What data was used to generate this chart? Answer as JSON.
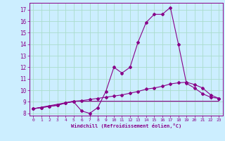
{
  "xlabel": "Windchill (Refroidissement éolien,°C)",
  "background_color": "#cceeff",
  "grid_color": "#aaddcc",
  "line_color": "#880088",
  "xlim": [
    -0.5,
    23.5
  ],
  "ylim": [
    7.8,
    17.6
  ],
  "yticks": [
    8,
    9,
    10,
    11,
    12,
    13,
    14,
    15,
    16,
    17
  ],
  "xticks": [
    0,
    1,
    2,
    3,
    4,
    5,
    6,
    7,
    8,
    9,
    10,
    11,
    12,
    13,
    14,
    15,
    16,
    17,
    18,
    19,
    20,
    21,
    22,
    23
  ],
  "series1_x": [
    0,
    1,
    2,
    3,
    4,
    5,
    6,
    7,
    8,
    9,
    10,
    11,
    12,
    13,
    14,
    15,
    16,
    17,
    18,
    19,
    20,
    21,
    22,
    23
  ],
  "series1_y": [
    8.4,
    8.5,
    8.6,
    8.7,
    8.9,
    9.0,
    8.2,
    8.0,
    8.5,
    9.9,
    12.0,
    11.5,
    12.0,
    14.2,
    15.9,
    16.6,
    16.6,
    17.2,
    14.0,
    10.6,
    10.2,
    9.7,
    9.4,
    9.3
  ],
  "series2_x": [
    0,
    1,
    2,
    3,
    4,
    5,
    6,
    7,
    8,
    9,
    10,
    11,
    12,
    13,
    14,
    15,
    16,
    17,
    18,
    19,
    20,
    21,
    22,
    23
  ],
  "series2_y": [
    8.4,
    8.5,
    8.6,
    8.7,
    8.9,
    9.05,
    9.1,
    9.2,
    9.3,
    9.4,
    9.5,
    9.6,
    9.75,
    9.9,
    10.1,
    10.2,
    10.35,
    10.55,
    10.65,
    10.7,
    10.5,
    10.2,
    9.6,
    9.3
  ],
  "series3_x": [
    0,
    5,
    23
  ],
  "series3_y": [
    8.4,
    9.05,
    9.05
  ]
}
